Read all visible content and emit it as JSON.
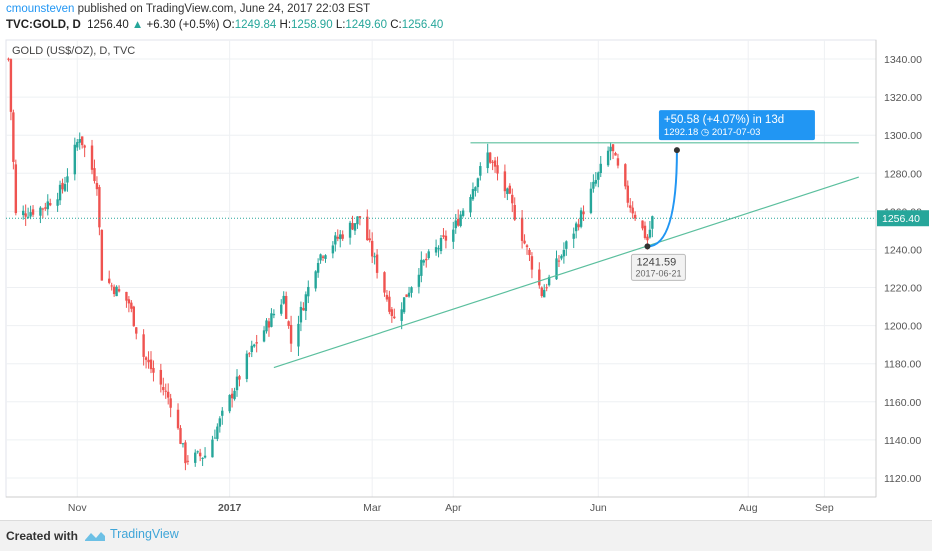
{
  "header": {
    "author": "cmounsteven",
    "published_text": "published on TradingView.com, June 24, 2017 22:03 EST",
    "symbol": "TVC:GOLD, D",
    "last": "1256.40",
    "change": "+6.30 (+0.5%)",
    "o_label": "O:",
    "o": "1249.84",
    "h_label": "H:",
    "h": "1258.90",
    "l_label": "L:",
    "l": "1249.60",
    "c_label": "C:",
    "c": "1256.40"
  },
  "footer": {
    "created": "Created with",
    "brand": "TradingView"
  },
  "colors": {
    "up": "#26a69a",
    "down": "#ef5350",
    "trend": "#5bbf9e",
    "accent": "#2196f3"
  },
  "chart_data": {
    "type": "candlestick",
    "title": "GOLD (US$/OZ), D, TVC",
    "ylim": [
      1110,
      1350
    ],
    "yticks": [
      1120,
      1140,
      1160,
      1180,
      1200,
      1220,
      1240,
      1260,
      1280,
      1300,
      1320,
      1340
    ],
    "x_range": [
      "2016-10-03",
      "2017-09-22"
    ],
    "xticks": [
      {
        "label": "Nov",
        "date": "2016-11-01"
      },
      {
        "label": "2017",
        "date": "2017-01-02"
      },
      {
        "label": "Mar",
        "date": "2017-03-01"
      },
      {
        "label": "Apr",
        "date": "2017-04-03"
      },
      {
        "label": "Jun",
        "date": "2017-06-01"
      },
      {
        "label": "Aug",
        "date": "2017-08-01"
      },
      {
        "label": "Sep",
        "date": "2017-09-01"
      }
    ],
    "last_price": "1256.40",
    "anchors": [
      {
        "date": "2016-10-04",
        "close": 1340
      },
      {
        "date": "2016-10-07",
        "close": 1258
      },
      {
        "date": "2016-10-18",
        "close": 1262
      },
      {
        "date": "2016-10-26",
        "close": 1272
      },
      {
        "date": "2016-11-02",
        "close": 1300
      },
      {
        "date": "2016-11-09",
        "close": 1275
      },
      {
        "date": "2016-11-11",
        "close": 1226
      },
      {
        "date": "2016-11-22",
        "close": 1212
      },
      {
        "date": "2016-11-28",
        "close": 1184
      },
      {
        "date": "2016-12-09",
        "close": 1160
      },
      {
        "date": "2016-12-15",
        "close": 1130
      },
      {
        "date": "2016-12-23",
        "close": 1132
      },
      {
        "date": "2017-01-10",
        "close": 1185
      },
      {
        "date": "2017-01-24",
        "close": 1215
      },
      {
        "date": "2017-01-27",
        "close": 1191
      },
      {
        "date": "2017-02-07",
        "close": 1236
      },
      {
        "date": "2017-02-24",
        "close": 1257
      },
      {
        "date": "2017-03-10",
        "close": 1203
      },
      {
        "date": "2017-03-20",
        "close": 1230
      },
      {
        "date": "2017-04-03",
        "close": 1250
      },
      {
        "date": "2017-04-17",
        "close": 1290
      },
      {
        "date": "2017-04-26",
        "close": 1266
      },
      {
        "date": "2017-05-09",
        "close": 1217
      },
      {
        "date": "2017-05-15",
        "close": 1232
      },
      {
        "date": "2017-05-24",
        "close": 1255
      },
      {
        "date": "2017-06-06",
        "close": 1294
      },
      {
        "date": "2017-06-13",
        "close": 1266
      },
      {
        "date": "2017-06-21",
        "close": 1245
      },
      {
        "date": "2017-06-23",
        "close": 1256
      }
    ],
    "resistance_line": {
      "start_date": "2017-04-10",
      "end_date": "2017-09-15",
      "price": 1296
    },
    "trendline": {
      "start": {
        "date": "2017-01-20",
        "price": 1178
      },
      "end": {
        "date": "2017-09-15",
        "price": 1278
      }
    },
    "low_annotation": {
      "price": "1241.59",
      "date": "2017-06-21",
      "value": 1241.59
    },
    "projection": {
      "text": "+50.58 (+4.07%) in 13d",
      "price": "1292.18",
      "date": "2017-07-03",
      "value": 1292.18
    }
  }
}
